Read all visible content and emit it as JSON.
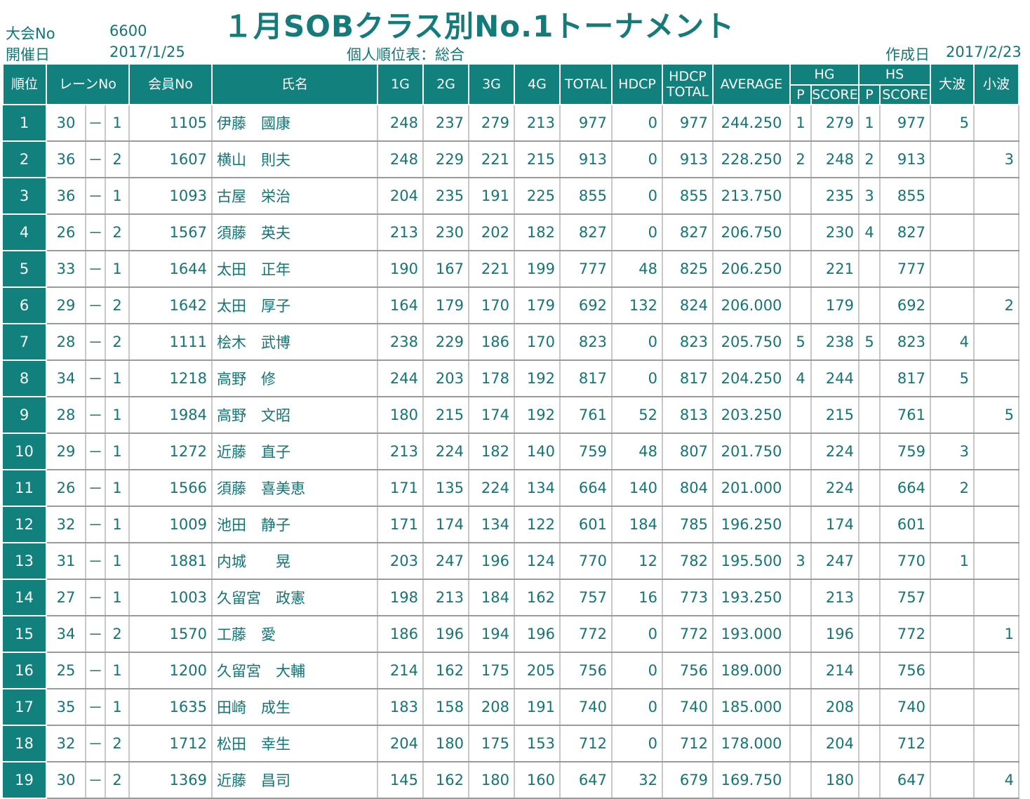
{
  "title": "１月SOBクラス別No.1トーナメント",
  "meta": {
    "taikai_label": "大会No",
    "taikai_value": "6600",
    "date_label": "開催日",
    "date_value": "2017/1/25",
    "table_label": "個人順位表：総合",
    "created_label": "作成日",
    "created_value": "2017/2/23"
  },
  "headers": {
    "rank": "順位",
    "lane": "レーンNo",
    "member": "会員No",
    "name": "氏名",
    "g1": "1G",
    "g2": "2G",
    "g3": "3G",
    "g4": "4G",
    "total": "TOTAL",
    "hdcp": "HDCP",
    "hdcp_total_1": "HDCP",
    "hdcp_total_2": "TOTAL",
    "average": "AVERAGE",
    "hg": "HG",
    "hg_p": "P",
    "hg_score": "SCORE",
    "hs": "HS",
    "hs_p": "P",
    "hs_score": "SCORE",
    "onami": "大波",
    "konami": "小波"
  },
  "lane_separator": "－",
  "rows": [
    {
      "rank": "1",
      "lane": "30",
      "pos": "1",
      "member": "1105",
      "name": "伊藤　國康",
      "g1": "248",
      "g2": "237",
      "g3": "279",
      "g4": "213",
      "total": "977",
      "hdcp": "0",
      "hdcp_total": "977",
      "average": "244.250",
      "hg_p": "1",
      "hg_score": "279",
      "hs_p": "1",
      "hs_score": "977",
      "onami": "5",
      "konami": ""
    },
    {
      "rank": "2",
      "lane": "36",
      "pos": "2",
      "member": "1607",
      "name": "横山　則夫",
      "g1": "248",
      "g2": "229",
      "g3": "221",
      "g4": "215",
      "total": "913",
      "hdcp": "0",
      "hdcp_total": "913",
      "average": "228.250",
      "hg_p": "2",
      "hg_score": "248",
      "hs_p": "2",
      "hs_score": "913",
      "onami": "",
      "konami": "3"
    },
    {
      "rank": "3",
      "lane": "36",
      "pos": "1",
      "member": "1093",
      "name": "古屋　栄治",
      "g1": "204",
      "g2": "235",
      "g3": "191",
      "g4": "225",
      "total": "855",
      "hdcp": "0",
      "hdcp_total": "855",
      "average": "213.750",
      "hg_p": "",
      "hg_score": "235",
      "hs_p": "3",
      "hs_score": "855",
      "onami": "",
      "konami": ""
    },
    {
      "rank": "4",
      "lane": "26",
      "pos": "2",
      "member": "1567",
      "name": "須藤　英夫",
      "g1": "213",
      "g2": "230",
      "g3": "202",
      "g4": "182",
      "total": "827",
      "hdcp": "0",
      "hdcp_total": "827",
      "average": "206.750",
      "hg_p": "",
      "hg_score": "230",
      "hs_p": "4",
      "hs_score": "827",
      "onami": "",
      "konami": ""
    },
    {
      "rank": "5",
      "lane": "33",
      "pos": "1",
      "member": "1644",
      "name": "太田　正年",
      "g1": "190",
      "g2": "167",
      "g3": "221",
      "g4": "199",
      "total": "777",
      "hdcp": "48",
      "hdcp_total": "825",
      "average": "206.250",
      "hg_p": "",
      "hg_score": "221",
      "hs_p": "",
      "hs_score": "777",
      "onami": "",
      "konami": ""
    },
    {
      "rank": "6",
      "lane": "29",
      "pos": "2",
      "member": "1642",
      "name": "太田　厚子",
      "g1": "164",
      "g2": "179",
      "g3": "170",
      "g4": "179",
      "total": "692",
      "hdcp": "132",
      "hdcp_total": "824",
      "average": "206.000",
      "hg_p": "",
      "hg_score": "179",
      "hs_p": "",
      "hs_score": "692",
      "onami": "",
      "konami": "2"
    },
    {
      "rank": "7",
      "lane": "28",
      "pos": "2",
      "member": "1111",
      "name": "桧木　武博",
      "g1": "238",
      "g2": "229",
      "g3": "186",
      "g4": "170",
      "total": "823",
      "hdcp": "0",
      "hdcp_total": "823",
      "average": "205.750",
      "hg_p": "5",
      "hg_score": "238",
      "hs_p": "5",
      "hs_score": "823",
      "onami": "4",
      "konami": ""
    },
    {
      "rank": "8",
      "lane": "34",
      "pos": "1",
      "member": "1218",
      "name": "高野　修",
      "g1": "244",
      "g2": "203",
      "g3": "178",
      "g4": "192",
      "total": "817",
      "hdcp": "0",
      "hdcp_total": "817",
      "average": "204.250",
      "hg_p": "4",
      "hg_score": "244",
      "hs_p": "",
      "hs_score": "817",
      "onami": "5",
      "konami": ""
    },
    {
      "rank": "9",
      "lane": "28",
      "pos": "1",
      "member": "1984",
      "name": "高野　文昭",
      "g1": "180",
      "g2": "215",
      "g3": "174",
      "g4": "192",
      "total": "761",
      "hdcp": "52",
      "hdcp_total": "813",
      "average": "203.250",
      "hg_p": "",
      "hg_score": "215",
      "hs_p": "",
      "hs_score": "761",
      "onami": "",
      "konami": "5"
    },
    {
      "rank": "10",
      "lane": "29",
      "pos": "1",
      "member": "1272",
      "name": "近藤　直子",
      "g1": "213",
      "g2": "224",
      "g3": "182",
      "g4": "140",
      "total": "759",
      "hdcp": "48",
      "hdcp_total": "807",
      "average": "201.750",
      "hg_p": "",
      "hg_score": "224",
      "hs_p": "",
      "hs_score": "759",
      "onami": "3",
      "konami": ""
    },
    {
      "rank": "11",
      "lane": "26",
      "pos": "1",
      "member": "1566",
      "name": "須藤　喜美恵",
      "g1": "171",
      "g2": "135",
      "g3": "224",
      "g4": "134",
      "total": "664",
      "hdcp": "140",
      "hdcp_total": "804",
      "average": "201.000",
      "hg_p": "",
      "hg_score": "224",
      "hs_p": "",
      "hs_score": "664",
      "onami": "2",
      "konami": ""
    },
    {
      "rank": "12",
      "lane": "32",
      "pos": "1",
      "member": "1009",
      "name": "池田　静子",
      "g1": "171",
      "g2": "174",
      "g3": "134",
      "g4": "122",
      "total": "601",
      "hdcp": "184",
      "hdcp_total": "785",
      "average": "196.250",
      "hg_p": "",
      "hg_score": "174",
      "hs_p": "",
      "hs_score": "601",
      "onami": "",
      "konami": ""
    },
    {
      "rank": "13",
      "lane": "31",
      "pos": "1",
      "member": "1881",
      "name": "内城　　晃",
      "g1": "203",
      "g2": "247",
      "g3": "196",
      "g4": "124",
      "total": "770",
      "hdcp": "12",
      "hdcp_total": "782",
      "average": "195.500",
      "hg_p": "3",
      "hg_score": "247",
      "hs_p": "",
      "hs_score": "770",
      "onami": "1",
      "konami": ""
    },
    {
      "rank": "14",
      "lane": "27",
      "pos": "1",
      "member": "1003",
      "name": "久留宮　政憲",
      "g1": "198",
      "g2": "213",
      "g3": "184",
      "g4": "162",
      "total": "757",
      "hdcp": "16",
      "hdcp_total": "773",
      "average": "193.250",
      "hg_p": "",
      "hg_score": "213",
      "hs_p": "",
      "hs_score": "757",
      "onami": "",
      "konami": ""
    },
    {
      "rank": "15",
      "lane": "34",
      "pos": "2",
      "member": "1570",
      "name": "工藤　愛",
      "g1": "186",
      "g2": "196",
      "g3": "194",
      "g4": "196",
      "total": "772",
      "hdcp": "0",
      "hdcp_total": "772",
      "average": "193.000",
      "hg_p": "",
      "hg_score": "196",
      "hs_p": "",
      "hs_score": "772",
      "onami": "",
      "konami": "1"
    },
    {
      "rank": "16",
      "lane": "25",
      "pos": "1",
      "member": "1200",
      "name": "久留宮　大輔",
      "g1": "214",
      "g2": "162",
      "g3": "175",
      "g4": "205",
      "total": "756",
      "hdcp": "0",
      "hdcp_total": "756",
      "average": "189.000",
      "hg_p": "",
      "hg_score": "214",
      "hs_p": "",
      "hs_score": "756",
      "onami": "",
      "konami": ""
    },
    {
      "rank": "17",
      "lane": "35",
      "pos": "1",
      "member": "1635",
      "name": "田崎　成生",
      "g1": "183",
      "g2": "158",
      "g3": "208",
      "g4": "191",
      "total": "740",
      "hdcp": "0",
      "hdcp_total": "740",
      "average": "185.000",
      "hg_p": "",
      "hg_score": "208",
      "hs_p": "",
      "hs_score": "740",
      "onami": "",
      "konami": ""
    },
    {
      "rank": "18",
      "lane": "32",
      "pos": "2",
      "member": "1712",
      "name": "松田　幸生",
      "g1": "204",
      "g2": "180",
      "g3": "175",
      "g4": "153",
      "total": "712",
      "hdcp": "0",
      "hdcp_total": "712",
      "average": "178.000",
      "hg_p": "",
      "hg_score": "204",
      "hs_p": "",
      "hs_score": "712",
      "onami": "",
      "konami": ""
    },
    {
      "rank": "19",
      "lane": "30",
      "pos": "2",
      "member": "1369",
      "name": "近藤　昌司",
      "g1": "145",
      "g2": "162",
      "g3": "180",
      "g4": "160",
      "total": "647",
      "hdcp": "32",
      "hdcp_total": "679",
      "average": "169.750",
      "hg_p": "",
      "hg_score": "180",
      "hs_p": "",
      "hs_score": "647",
      "onami": "",
      "konami": "4"
    }
  ]
}
